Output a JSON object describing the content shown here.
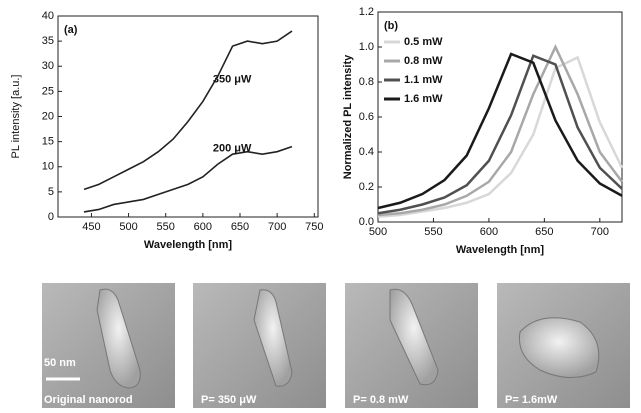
{
  "chart_data": [
    {
      "type": "line",
      "label": "(a)",
      "xlabel": "Wavelength [nm]",
      "ylabel": "PL intensity [a.u.]",
      "x": [
        440,
        460,
        480,
        500,
        520,
        540,
        560,
        580,
        600,
        620,
        640,
        660,
        680,
        700,
        720
      ],
      "series": [
        {
          "name": "350 μW",
          "color": "#222222",
          "values": [
            5.5,
            6.5,
            8,
            9.5,
            11,
            13,
            15.5,
            19,
            23,
            28,
            34,
            35,
            34.5,
            35,
            37
          ]
        },
        {
          "name": "200 μW",
          "color": "#222222",
          "values": [
            1,
            1.5,
            2.5,
            3,
            3.5,
            4.5,
            5.5,
            6.5,
            8,
            10.5,
            12.5,
            13,
            12.5,
            13,
            14
          ]
        }
      ],
      "xlim": [
        405,
        755
      ],
      "xticks": [
        450,
        500,
        550,
        600,
        650,
        700,
        750
      ],
      "ylim": [
        0,
        40
      ],
      "yticks": [
        0,
        5,
        10,
        15,
        20,
        25,
        30,
        35,
        40
      ],
      "legend": "none"
    },
    {
      "type": "line",
      "label": "(b)",
      "xlabel": "Wavelength [nm]",
      "ylabel": "Normalized PL intensity",
      "x": [
        500,
        520,
        540,
        560,
        580,
        600,
        620,
        640,
        660,
        680,
        700,
        720
      ],
      "series": [
        {
          "name": "0.5 mW",
          "color": "#d8d8d8",
          "values": [
            0.03,
            0.04,
            0.06,
            0.08,
            0.11,
            0.16,
            0.28,
            0.5,
            0.88,
            0.94,
            0.57,
            0.31
          ]
        },
        {
          "name": "0.8 mW",
          "color": "#a8a8a8",
          "values": [
            0.04,
            0.05,
            0.07,
            0.1,
            0.15,
            0.23,
            0.4,
            0.73,
            1.0,
            0.73,
            0.4,
            0.23
          ]
        },
        {
          "name": "1.1 mW",
          "color": "#505050",
          "values": [
            0.05,
            0.07,
            0.1,
            0.14,
            0.21,
            0.35,
            0.61,
            0.95,
            0.9,
            0.54,
            0.31,
            0.19
          ]
        },
        {
          "name": "1.6 mW",
          "color": "#1a1a1a",
          "values": [
            0.08,
            0.11,
            0.16,
            0.24,
            0.38,
            0.65,
            0.96,
            0.91,
            0.58,
            0.35,
            0.22,
            0.15
          ]
        }
      ],
      "xlim": [
        500,
        720
      ],
      "xticks": [
        500,
        550,
        600,
        650,
        700
      ],
      "ylim": [
        0,
        1.2
      ],
      "yticks": [
        {
          "value": 0,
          "label": "0.0"
        },
        0.2,
        0.4,
        0.6,
        0.8,
        {
          "value": 1,
          "label": "1.0"
        },
        1.2
      ],
      "legend": "upper left"
    }
  ],
  "images": [
    {
      "caption": "Original nanorod"
    },
    {
      "caption": "P= 350 μW"
    },
    {
      "caption": "P= 0.8 mW"
    },
    {
      "caption": "P= 1.6mW"
    }
  ],
  "scale_bar": "50 nm"
}
